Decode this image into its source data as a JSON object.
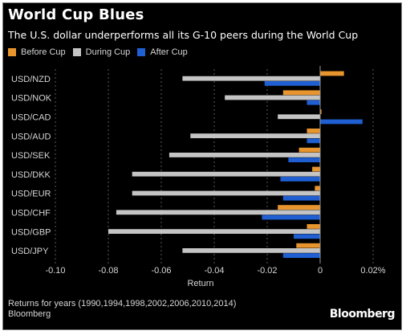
{
  "header": {
    "title": "World Cup Blues",
    "subtitle": "The U.S. dollar underperforms all its G-10 peers during the World Cup"
  },
  "footer": {
    "note": "Returns for years (1990,1994,1998,2002,2006,2010,2014)",
    "source": "Bloomberg",
    "brand": "Bloomberg"
  },
  "colors": {
    "background": "#000000",
    "before": "#e8952e",
    "during": "#c4c4c4",
    "after": "#1f5fd1",
    "text": "#d6d6d6",
    "grid": "#5a5a5a"
  },
  "chart_data": {
    "type": "bar",
    "orientation": "horizontal",
    "title": "World Cup Blues",
    "subtitle": "The U.S. dollar underperforms all its G-10 peers during the World Cup",
    "xlabel": "Return",
    "xlim": [
      -0.1,
      0.02
    ],
    "x_ticks": [
      -0.1,
      -0.08,
      -0.06,
      -0.04,
      -0.02,
      0,
      0.02
    ],
    "x_tick_labels": [
      "-0.10",
      "-0.08",
      "-0.06",
      "-0.04",
      "-0.02",
      "0",
      "0.02%"
    ],
    "grid": "vertical dashed",
    "legend": "top-left",
    "categories": [
      "USD/NZD",
      "USD/NOK",
      "USD/CAD",
      "USD/AUD",
      "USD/SEK",
      "USD/DKK",
      "USD/EUR",
      "USD/CHF",
      "USD/GBP",
      "USD/JPY"
    ],
    "series": [
      {
        "name": "Before Cup",
        "color": "#e8952e",
        "values": [
          0.009,
          -0.014,
          0.0005,
          -0.005,
          -0.008,
          -0.003,
          -0.002,
          -0.016,
          -0.005,
          -0.009
        ]
      },
      {
        "name": "During Cup",
        "color": "#c4c4c4",
        "values": [
          -0.052,
          -0.036,
          -0.016,
          -0.049,
          -0.057,
          -0.071,
          -0.071,
          -0.077,
          -0.08,
          -0.052
        ]
      },
      {
        "name": "After Cup",
        "color": "#1f5fd1",
        "values": [
          -0.021,
          -0.005,
          0.016,
          -0.005,
          -0.012,
          -0.015,
          -0.014,
          -0.022,
          -0.01,
          -0.014
        ]
      }
    ]
  }
}
